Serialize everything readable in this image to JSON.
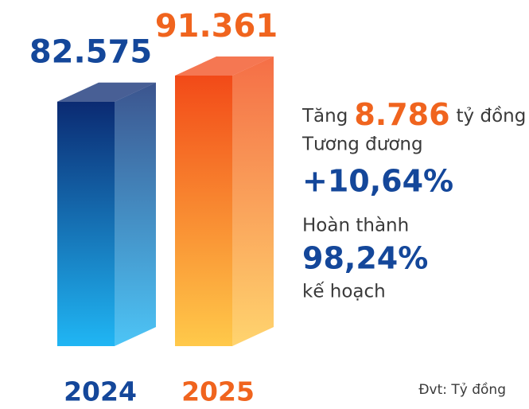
{
  "chart_data": {
    "type": "bar",
    "categories": [
      "2024",
      "2025"
    ],
    "values": [
      82575,
      91361
    ],
    "value_labels": [
      "82.575",
      "91.361"
    ],
    "colors": [
      [
        "#0b2a72",
        "#20b6f4"
      ],
      [
        "#f24a18",
        "#ffc94a"
      ]
    ],
    "label_colors": [
      "#14479a",
      "#f0641e"
    ],
    "annotations": {
      "increase_prefix": "Tăng",
      "increase_value": "8.786",
      "increase_unit": "tỷ đồng",
      "equivalent": "Tương đương",
      "growth": "+10,64%",
      "completed": "Hoàn thành",
      "completion": "98,24%",
      "plan": "kế hoạch",
      "unit_note": "Đvt: Tỷ đồng"
    }
  }
}
